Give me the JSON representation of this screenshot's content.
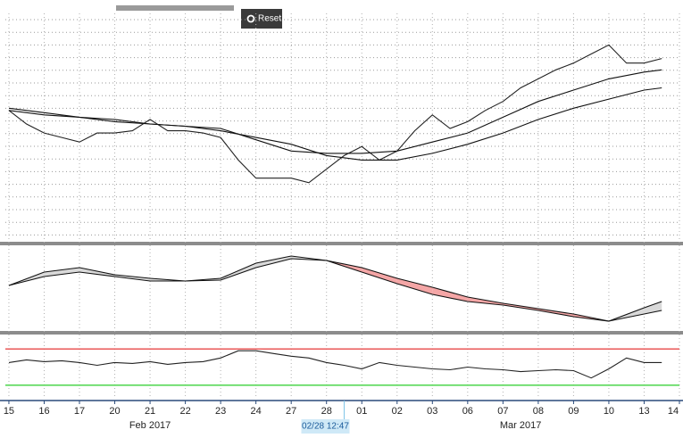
{
  "toolbar": {
    "reset": "Reset"
  },
  "chart_data": [
    {
      "type": "line",
      "xlim": [
        -0.1,
        19.0
      ],
      "xticks": [
        {
          "value": 0,
          "label": "15"
        },
        {
          "value": 1,
          "label": "16"
        },
        {
          "value": 2,
          "label": "17"
        },
        {
          "value": 3,
          "label": "20"
        },
        {
          "value": 4,
          "label": "21"
        },
        {
          "value": 5,
          "label": "22"
        },
        {
          "value": 6,
          "label": "23"
        },
        {
          "value": 7,
          "label": "24"
        },
        {
          "value": 8,
          "label": "27"
        },
        {
          "value": 9,
          "label": "28"
        },
        {
          "value": 10,
          "label": "01"
        },
        {
          "value": 11,
          "label": "02"
        },
        {
          "value": 12,
          "label": "03"
        },
        {
          "value": 13,
          "label": "06"
        },
        {
          "value": 14,
          "label": "07"
        },
        {
          "value": 15,
          "label": "08"
        },
        {
          "value": 16,
          "label": "09"
        },
        {
          "value": 17,
          "label": "10"
        },
        {
          "value": 18,
          "label": "13"
        },
        {
          "value": 19,
          "label": "14"
        }
      ],
      "months": [
        {
          "value": 4,
          "label": "Feb 2017"
        },
        {
          "value": 14.5,
          "label": "Mar 2017"
        }
      ],
      "cursor": {
        "value": 9.5,
        "label": "02/28 12:47"
      },
      "ylim": [
        0,
        100
      ],
      "grid": true,
      "series": [
        {
          "color": "#222222",
          "x": [
            0,
            0.5,
            1,
            1.5,
            2,
            2.5,
            3,
            3.5,
            4,
            4.5,
            5,
            5.5,
            6,
            6.5,
            7,
            7.5,
            8,
            8.5,
            9,
            9.5,
            10,
            10.5,
            11,
            11.5,
            12,
            12.5,
            13,
            13.5,
            14,
            14.5,
            15,
            15.5,
            16,
            16.5,
            17,
            17.5,
            18,
            18.5
          ],
          "values": [
            57,
            51,
            47,
            45,
            43,
            47,
            47,
            48,
            53,
            48,
            48,
            47,
            45,
            35,
            27,
            27,
            27,
            25,
            31,
            37,
            41,
            35,
            39,
            48,
            55,
            49,
            52,
            57,
            61,
            67,
            71,
            75,
            78,
            82,
            86,
            78,
            78,
            80
          ]
        },
        {
          "color": "#111111",
          "x": [
            0,
            1,
            2,
            3,
            4,
            5,
            6,
            7,
            8,
            9,
            10,
            11,
            12,
            13,
            14,
            15,
            16,
            17,
            18,
            18.5
          ],
          "values": [
            57,
            55,
            54,
            52,
            51,
            50,
            49,
            44,
            39,
            38,
            38,
            39,
            43,
            47,
            54,
            61,
            66,
            71,
            74,
            75
          ]
        },
        {
          "color": "#111111",
          "x": [
            0,
            1,
            2,
            3,
            4,
            5,
            6,
            7,
            8,
            9,
            10,
            11,
            12,
            13,
            14,
            15,
            16,
            17,
            18,
            18.5
          ],
          "values": [
            58,
            56,
            54,
            53,
            51,
            50,
            48,
            45,
            42,
            37,
            35,
            35,
            38,
            42,
            47,
            53,
            58,
            62,
            66,
            67
          ]
        }
      ]
    },
    {
      "type": "line",
      "xlim": [
        -0.1,
        19.0
      ],
      "ylim": [
        -52,
        38
      ],
      "fill": {
        "above": "#d9d9d9",
        "below": "#f4a6a6"
      },
      "series": [
        {
          "color": "#111111",
          "x": [
            0,
            1,
            2,
            3,
            4,
            5,
            6,
            7,
            8,
            9,
            10,
            11,
            12,
            13,
            14,
            15,
            16,
            17,
            18,
            18.5
          ],
          "values": [
            -2,
            13,
            18,
            10,
            6,
            3,
            6,
            23,
            31,
            26,
            13,
            0,
            -12,
            -20,
            -24,
            -30,
            -37,
            -42,
            -27,
            -20
          ]
        },
        {
          "color": "#111111",
          "x": [
            0,
            1,
            2,
            3,
            4,
            5,
            6,
            7,
            8,
            9,
            10,
            11,
            12,
            13,
            14,
            15,
            16,
            17,
            18,
            18.5
          ],
          "values": [
            -2,
            8,
            13,
            8,
            3,
            3,
            4,
            18,
            28,
            26,
            18,
            6,
            -4,
            -15,
            -22,
            -28,
            -34,
            -42,
            -34,
            -30
          ]
        }
      ]
    },
    {
      "type": "line",
      "xlim": [
        -0.1,
        19.0
      ],
      "ylim": [
        17,
        81
      ],
      "levels": [
        {
          "value": 70,
          "color": "#e84848"
        },
        {
          "value": 30,
          "color": "#3cd23c"
        }
      ],
      "series": [
        {
          "color": "#222222",
          "x": [
            0,
            0.5,
            1,
            1.5,
            2,
            2.5,
            3,
            3.5,
            4,
            4.5,
            5,
            5.5,
            6,
            6.5,
            7,
            7.5,
            8,
            8.5,
            9,
            9.5,
            10,
            10.5,
            11,
            11.5,
            12,
            12.5,
            13,
            13.5,
            14,
            14.5,
            15,
            15.5,
            16,
            16.5,
            17,
            17.5,
            18,
            18.5
          ],
          "values": [
            55,
            58,
            56,
            57,
            55,
            52,
            55,
            54,
            56,
            53,
            55,
            56,
            60,
            68,
            68,
            65,
            62,
            60,
            55,
            52,
            48,
            55,
            52,
            50,
            48,
            47,
            50,
            48,
            47,
            45,
            46,
            47,
            46,
            38,
            48,
            60,
            55,
            55
          ]
        }
      ]
    }
  ]
}
